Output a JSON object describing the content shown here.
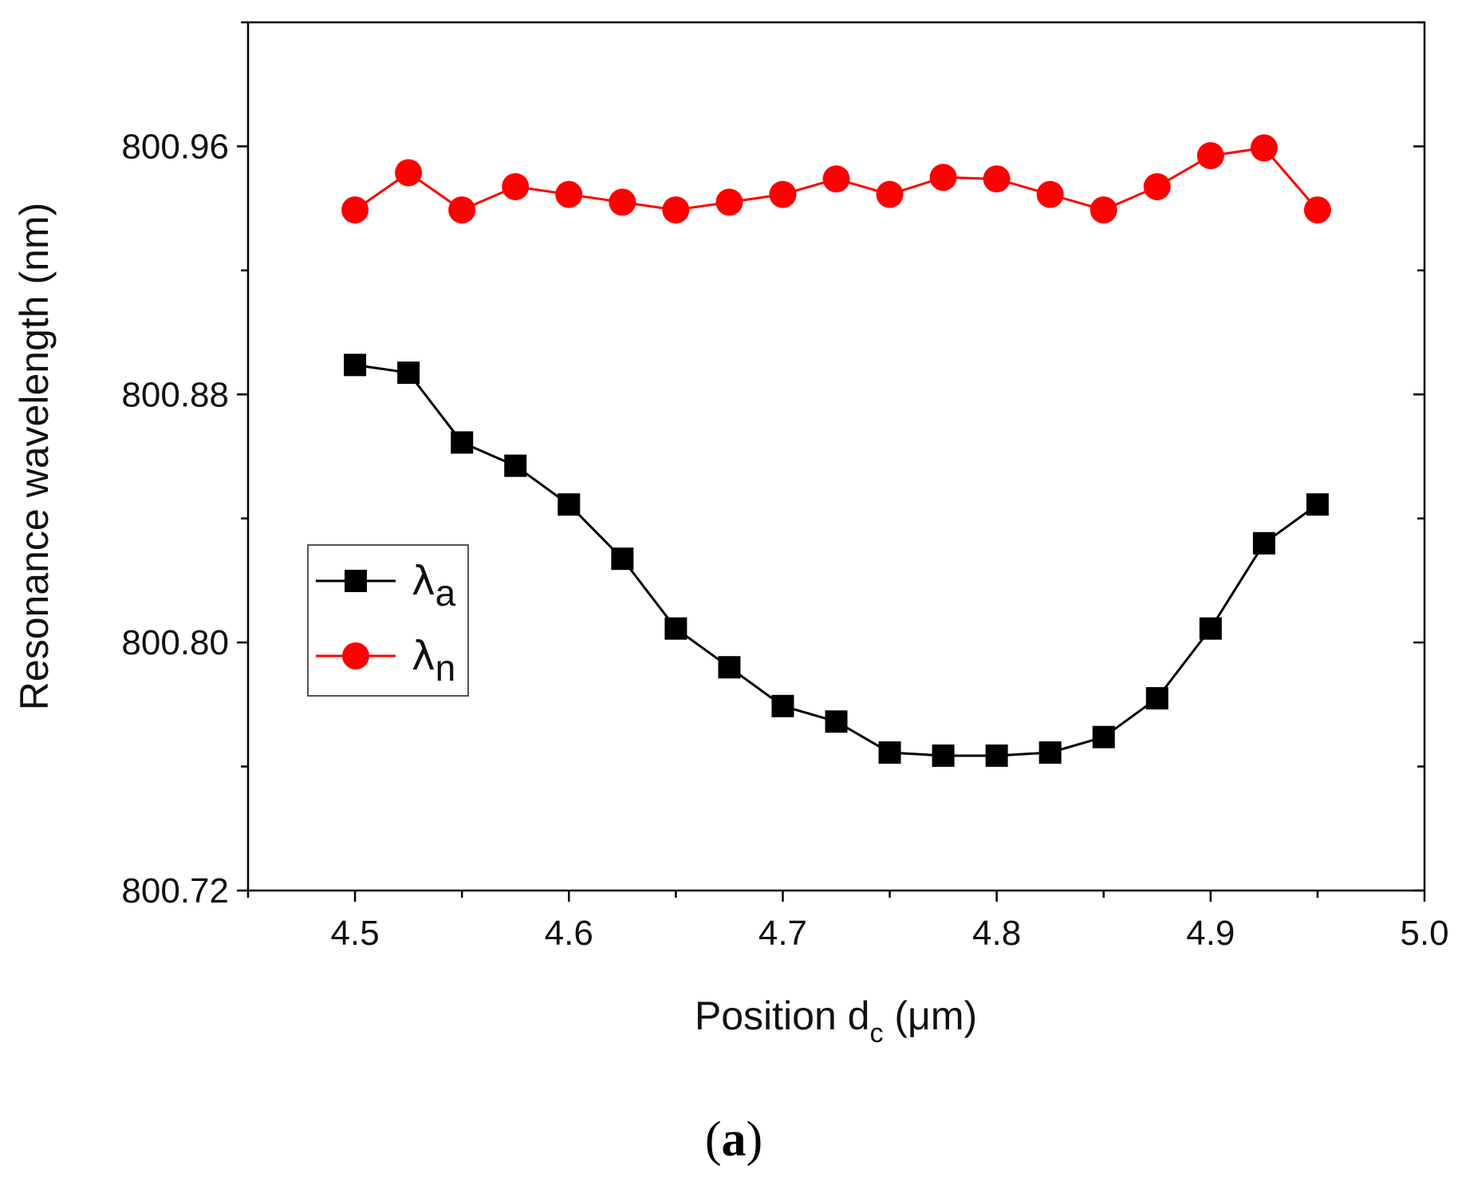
{
  "chart_data": {
    "type": "line",
    "x": [
      4.5,
      4.525,
      4.55,
      4.575,
      4.6,
      4.625,
      4.65,
      4.675,
      4.7,
      4.725,
      4.75,
      4.775,
      4.8,
      4.825,
      4.85,
      4.875,
      4.9,
      4.925,
      4.95
    ],
    "series": [
      {
        "name": "λa",
        "symbol": "λ",
        "subscript": "a",
        "color": "#000000",
        "marker": "square",
        "values": [
          800.8895,
          800.887,
          800.8645,
          800.857,
          800.8445,
          800.827,
          800.8045,
          800.792,
          800.7795,
          800.7745,
          800.7645,
          800.7635,
          800.7635,
          800.7645,
          800.7695,
          800.782,
          800.8045,
          800.832,
          800.8445
        ]
      },
      {
        "name": "λn",
        "symbol": "λ",
        "subscript": "n",
        "color": "#ff0000",
        "marker": "circle",
        "values": [
          800.9395,
          800.9515,
          800.9395,
          800.947,
          800.9445,
          800.942,
          800.9395,
          800.942,
          800.9445,
          800.9495,
          800.9445,
          800.95,
          800.9495,
          800.9445,
          800.9395,
          800.947,
          800.957,
          800.9595,
          800.9395
        ]
      }
    ],
    "title": "",
    "xlabel": {
      "main": "Position d",
      "sub": "c",
      "unit": " (μm)"
    },
    "ylabel": "Resonance wavelength (nm)",
    "xlim": [
      4.45,
      5.0
    ],
    "ylim": [
      800.72,
      801.0
    ],
    "x_ticks": [
      4.5,
      4.6,
      4.7,
      4.8,
      4.9,
      5.0
    ],
    "x_tick_labels": [
      "4.5",
      "4.6",
      "4.7",
      "4.8",
      "4.9",
      "5.0"
    ],
    "y_ticks": [
      800.72,
      800.8,
      800.88,
      800.96
    ],
    "y_tick_labels": [
      "800.72",
      "800.80",
      "800.88",
      "800.96"
    ],
    "grid": false,
    "legend_position": "center-left"
  },
  "caption": {
    "open": "(",
    "letter": "a",
    "close": ")"
  }
}
